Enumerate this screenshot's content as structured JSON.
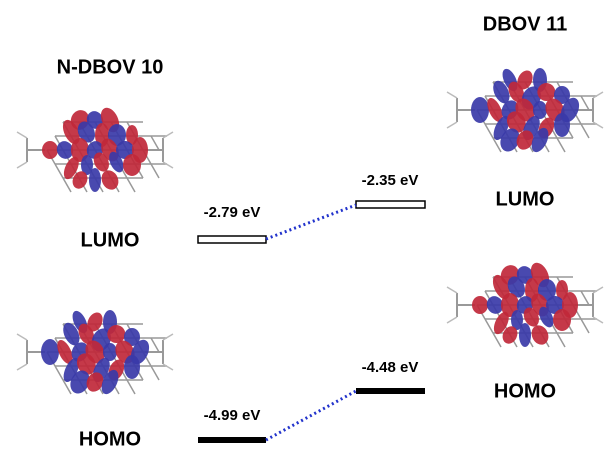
{
  "left": {
    "title": "N-DBOV 10",
    "lumo": {
      "label": "LUMO",
      "energy": "-2.79 eV"
    },
    "homo": {
      "label": "HOMO",
      "energy": "-4.99 eV"
    }
  },
  "right": {
    "title": "DBOV 11",
    "lumo": {
      "label": "LUMO",
      "energy": "-2.35 eV"
    },
    "homo": {
      "label": "HOMO",
      "energy": "-4.48 eV"
    }
  }
}
